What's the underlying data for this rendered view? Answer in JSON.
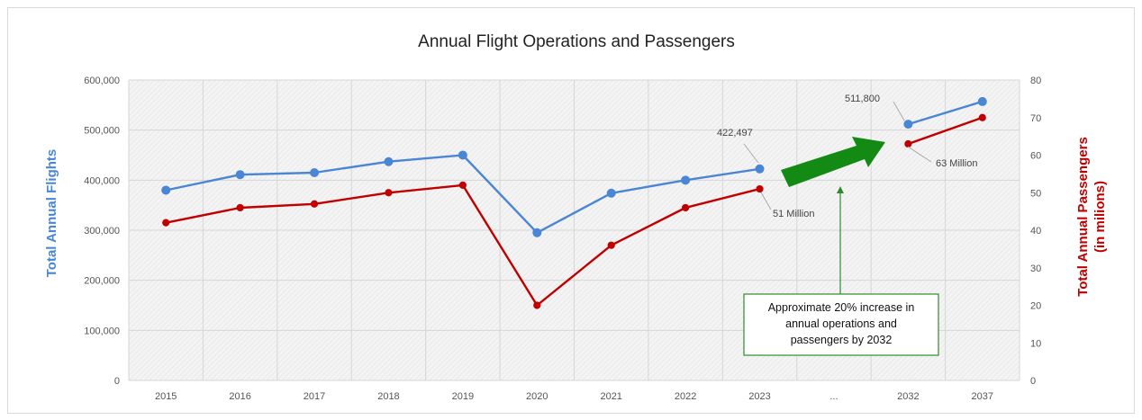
{
  "chart_data": {
    "type": "line",
    "title": "Annual Flight Operations and Passengers",
    "categories": [
      "2015",
      "2016",
      "2017",
      "2018",
      "2019",
      "2020",
      "2021",
      "2022",
      "2023",
      "...",
      "2032",
      "2037"
    ],
    "series": [
      {
        "name": "Total Annual Flights",
        "axis": "left",
        "color": "#4a86d4",
        "values": [
          380000,
          411000,
          415000,
          437000,
          450000,
          295000,
          374000,
          400000,
          422497,
          null,
          511800,
          557000
        ]
      },
      {
        "name": "Total Annual Passengers (in millions)",
        "axis": "right",
        "color": "#c00000",
        "values": [
          42,
          46,
          47,
          50,
          52,
          20,
          36,
          46,
          51,
          null,
          63,
          70
        ]
      }
    ],
    "ylabel_left": "Total Annual Flights",
    "ylabel_right_line1": "Total Annual Passengers",
    "ylabel_right_line2": "(in milions)",
    "ylim_left": [
      0,
      600000
    ],
    "yticks_left": [
      "0",
      "100,000",
      "200,000",
      "300,000",
      "400,000",
      "500,000",
      "600,000"
    ],
    "ylim_right": [
      0,
      80
    ],
    "yticks_right": [
      "0",
      "10",
      "20",
      "30",
      "40",
      "50",
      "60",
      "70",
      "80"
    ],
    "grid": true,
    "annotations": {
      "flights_2023": "422,497",
      "passengers_2023": "51 Million",
      "flights_2032": "511,800",
      "passengers_2032": "63 Million",
      "callout_line1": "Approximate 20% increase in",
      "callout_line2": "annual operations and",
      "callout_line3": "passengers by 2032"
    },
    "colors": {
      "flights": "#4a86d4",
      "passengers": "#c00000",
      "arrow": "#138a13",
      "callout_border": "#2e8b2e"
    }
  }
}
